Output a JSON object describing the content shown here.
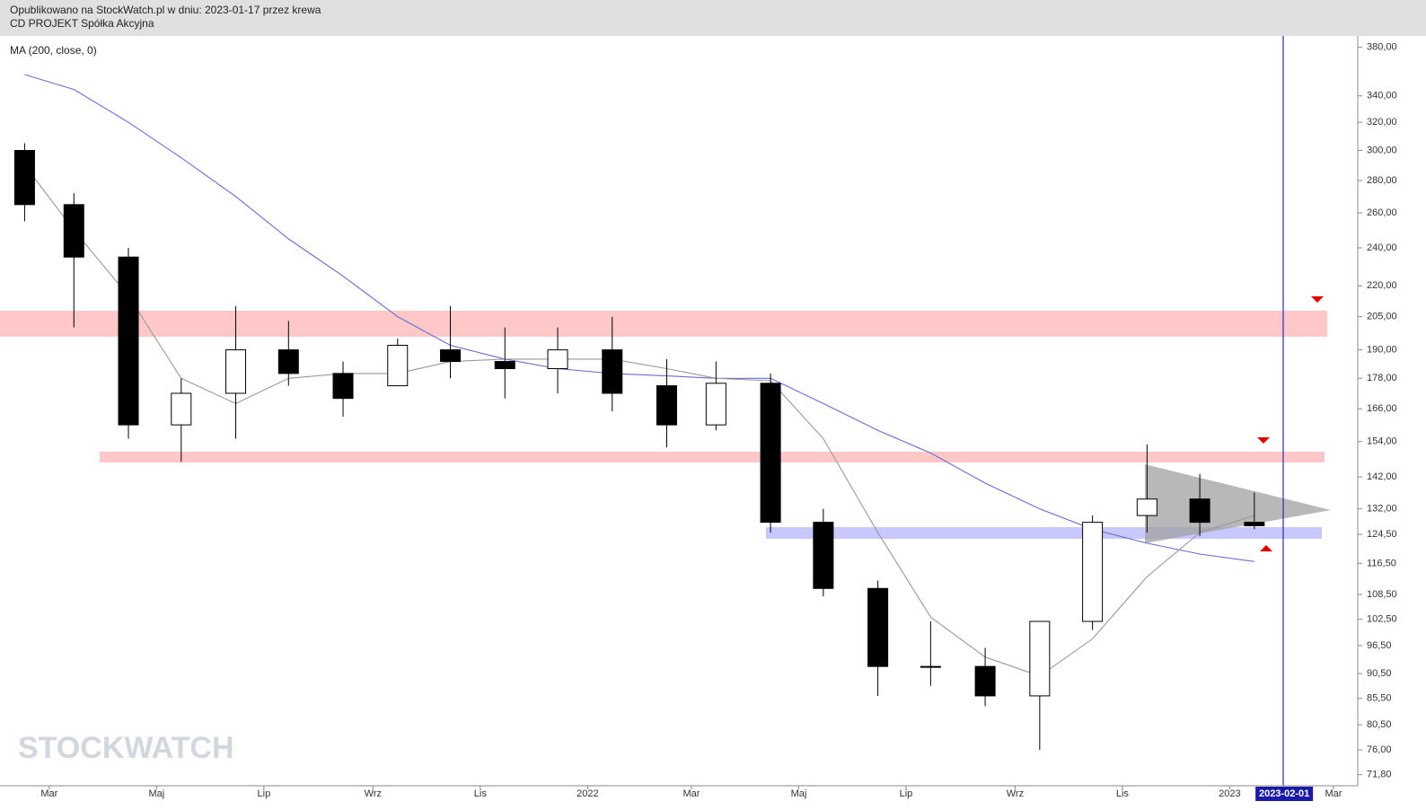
{
  "header": {
    "line1": "Opublikowano na StockWatch.pl w dniu: 2023-01-17 przez krewa",
    "line2": "CD PROJEKT Spółka Akcyjna"
  },
  "chart_data": {
    "type": "candlestick",
    "log_scale": true,
    "watermark": "STOCKWATCH",
    "x": [
      "2021-02",
      "2021-03",
      "2021-04",
      "2021-05",
      "2021-06",
      "2021-07",
      "2021-08",
      "2021-09",
      "2021-10",
      "2021-11",
      "2021-12",
      "2022-01",
      "2022-02",
      "2022-03",
      "2022-04",
      "2022-05",
      "2022-06",
      "2022-07",
      "2022-08",
      "2022-09",
      "2022-10",
      "2022-11",
      "2022-12",
      "2023-01"
    ],
    "open": [
      300,
      265,
      235,
      160,
      172,
      190,
      180,
      175,
      190,
      185,
      182,
      190,
      175,
      160,
      176,
      128,
      110,
      92,
      92,
      86,
      102,
      130,
      135,
      128
    ],
    "high": [
      305,
      272,
      240,
      178,
      210,
      203,
      185,
      195,
      210,
      200,
      200,
      205,
      186,
      185,
      180,
      132,
      112,
      102,
      96,
      102,
      130,
      153,
      143,
      137
    ],
    "low": [
      255,
      200,
      155,
      147,
      155,
      175,
      163,
      175,
      178,
      170,
      172,
      165,
      152,
      158,
      125,
      108,
      86,
      88,
      84,
      76,
      100,
      125,
      124,
      126
    ],
    "close": [
      265,
      235,
      160,
      172,
      190,
      180,
      170,
      192,
      185,
      182,
      190,
      172,
      160,
      176,
      128,
      110,
      92,
      92,
      86,
      102,
      128,
      135,
      128,
      127
    ],
    "up_color": "#ffffff",
    "down_color": "#000000",
    "series": [
      {
        "name": "MA (200, close, 0)",
        "color": "#6b6bd6",
        "values": [
          357,
          345,
          320,
          295,
          270,
          245,
          225,
          205,
          192,
          186,
          182,
          180,
          179,
          178,
          178,
          168,
          158,
          150,
          140,
          132,
          126,
          122,
          119,
          117
        ]
      },
      {
        "color": "#999999",
        "values": [
          290,
          250,
          215,
          178,
          168,
          178,
          180,
          180,
          185,
          186,
          186,
          186,
          182,
          178,
          177,
          155,
          125,
          103,
          94,
          90,
          98,
          113,
          125,
          130
        ]
      }
    ],
    "xlim": [
      "2021-02-01",
      "2023-03-01"
    ],
    "xticks": [
      {
        "value": "2021-03-01",
        "label": "Mar"
      },
      {
        "value": "2021-05-01",
        "label": "Maj"
      },
      {
        "value": "2021-07-01",
        "label": "Lip"
      },
      {
        "value": "2021-09-01",
        "label": "Wrz"
      },
      {
        "value": "2021-11-01",
        "label": "Lis"
      },
      {
        "value": "2022-01-01",
        "label": "2022"
      },
      {
        "value": "2022-03-01",
        "label": "Mar"
      },
      {
        "value": "2022-05-01",
        "label": "Maj"
      },
      {
        "value": "2022-07-01",
        "label": "Lip"
      },
      {
        "value": "2022-09-01",
        "label": "Wrz"
      },
      {
        "value": "2022-11-01",
        "label": "Lis"
      },
      {
        "value": "2023-01-01",
        "label": "2023"
      },
      {
        "value": "2023-02-01",
        "label": "2023-02-01",
        "highlight": true
      },
      {
        "value": "2023-03-01",
        "label": "Mar"
      }
    ],
    "ylim": [
      70,
      390
    ],
    "yticks": [
      {
        "value": 380,
        "label": "380,00"
      },
      {
        "value": 340,
        "label": "340,00"
      },
      {
        "value": 320,
        "label": "320,00"
      },
      {
        "value": 300,
        "label": "300,00"
      },
      {
        "value": 280,
        "label": "280,00"
      },
      {
        "value": 260,
        "label": "260,00"
      },
      {
        "value": 240,
        "label": "240,00"
      },
      {
        "value": 220,
        "label": "220,00"
      },
      {
        "value": 205,
        "label": "205,00"
      },
      {
        "value": 190,
        "label": "190,00"
      },
      {
        "value": 178,
        "label": "178,00"
      },
      {
        "value": 166,
        "label": "166,00"
      },
      {
        "value": 154,
        "label": "154,00"
      },
      {
        "value": 142,
        "label": "142,00"
      },
      {
        "value": 132,
        "label": "132,00"
      },
      {
        "value": 124.5,
        "label": "124,50"
      },
      {
        "value": 116.5,
        "label": "116,50"
      },
      {
        "value": 108.5,
        "label": "108,50"
      },
      {
        "value": 102.5,
        "label": "102,50"
      },
      {
        "value": 96.5,
        "label": "96,50"
      },
      {
        "value": 90.5,
        "label": "90,50"
      },
      {
        "value": 85.5,
        "label": "85,50"
      },
      {
        "value": 80.5,
        "label": "80,50"
      },
      {
        "value": 76,
        "label": "76,00"
      },
      {
        "value": 71.8,
        "label": "71,80"
      }
    ]
  }
}
